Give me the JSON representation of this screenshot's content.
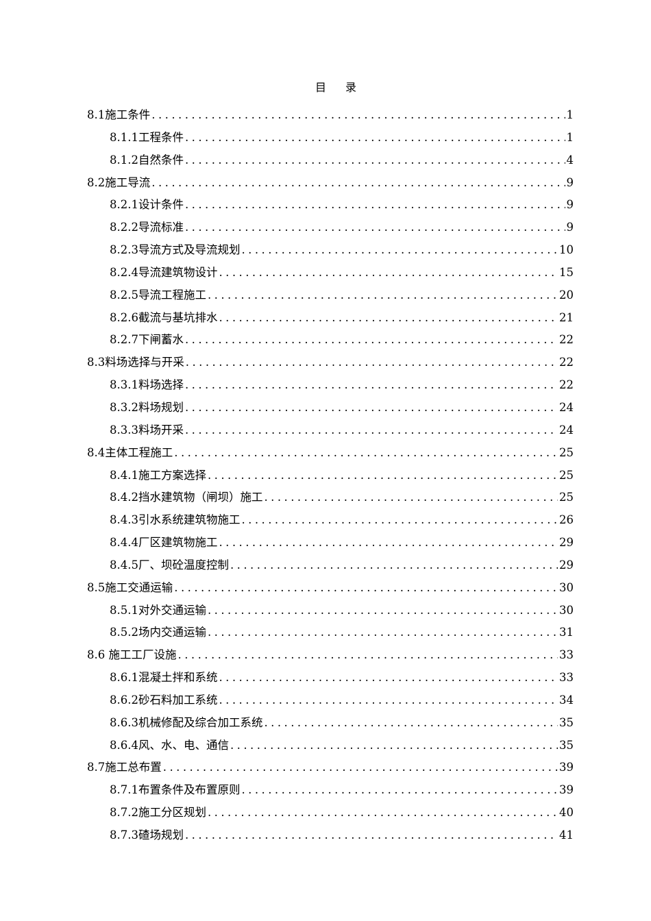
{
  "title": [
    "目",
    "录"
  ],
  "entries": [
    {
      "label": "8.1施工条件",
      "page": "1",
      "level": 1
    },
    {
      "label": "8.1.1工程条件",
      "page": "1",
      "level": 2
    },
    {
      "label": "8.1.2自然条件",
      "page": "4",
      "level": 2
    },
    {
      "label": "8.2施工导流",
      "page": "9",
      "level": 1
    },
    {
      "label": "8.2.1设计条件",
      "page": "9",
      "level": 2
    },
    {
      "label": "8.2.2导流标准",
      "page": "9",
      "level": 2
    },
    {
      "label": "8.2.3导流方式及导流规划",
      "page": "10",
      "level": 2
    },
    {
      "label": "8.2.4导流建筑物设计",
      "page": "15",
      "level": 2
    },
    {
      "label": "8.2.5导流工程施工",
      "page": "20",
      "level": 2
    },
    {
      "label": "8.2.6截流与基坑排水",
      "page": "21",
      "level": 2
    },
    {
      "label": "8.2.7下闸蓄水",
      "page": "22",
      "level": 2
    },
    {
      "label": "8.3料场选择与开采",
      "page": "22",
      "level": 1
    },
    {
      "label": "8.3.1料场选择",
      "page": "22",
      "level": 2
    },
    {
      "label": "8.3.2料场规划",
      "page": "24",
      "level": 2
    },
    {
      "label": "8.3.3料场开采",
      "page": "24",
      "level": 2
    },
    {
      "label": "8.4主体工程施工",
      "page": "25",
      "level": 1
    },
    {
      "label": "8.4.1施工方案选择",
      "page": "25",
      "level": 2
    },
    {
      "label": "8.4.2挡水建筑物（闸坝）施工",
      "page": "25",
      "level": 2
    },
    {
      "label": "8.4.3引水系统建筑物施工",
      "page": "26",
      "level": 2
    },
    {
      "label": "8.4.4厂区建筑物施工",
      "page": "29",
      "level": 2
    },
    {
      "label": "8.4.5厂、坝砼温度控制",
      "page": "29",
      "level": 2
    },
    {
      "label": "8.5施工交通运输",
      "page": "30",
      "level": 1
    },
    {
      "label": "8.5.1对外交通运输",
      "page": "30",
      "level": 2
    },
    {
      "label": "8.5.2场内交通运输",
      "page": "31",
      "level": 2
    },
    {
      "label": "8.6 施工工厂设施",
      "page": "33",
      "level": 1
    },
    {
      "label": "8.6.1混凝土拌和系统",
      "page": "33",
      "level": 2
    },
    {
      "label": "8.6.2砂石料加工系统",
      "page": "34",
      "level": 2
    },
    {
      "label": "8.6.3机械修配及综合加工系统",
      "page": "35",
      "level": 2
    },
    {
      "label": "8.6.4风、水、电、通信",
      "page": "35",
      "level": 2
    },
    {
      "label": "8.7施工总布置",
      "page": "39",
      "level": 1
    },
    {
      "label": "8.7.1布置条件及布置原则",
      "page": "39",
      "level": 2
    },
    {
      "label": "8.7.2施工分区规划",
      "page": "40",
      "level": 2
    },
    {
      "label": "8.7.3碴场规划",
      "page": "41",
      "level": 2
    }
  ]
}
